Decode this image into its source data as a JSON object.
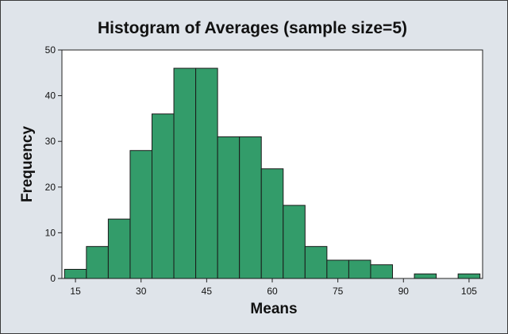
{
  "chart_data": {
    "type": "bar",
    "title": "Histogram of Averages (sample size=5)",
    "xlabel": "Means",
    "ylabel": "Frequency",
    "bin_width": 5,
    "bins": [
      {
        "center": 15,
        "count": 2
      },
      {
        "center": 20,
        "count": 7
      },
      {
        "center": 25,
        "count": 13
      },
      {
        "center": 30,
        "count": 28
      },
      {
        "center": 35,
        "count": 36
      },
      {
        "center": 40,
        "count": 46
      },
      {
        "center": 45,
        "count": 46
      },
      {
        "center": 50,
        "count": 31
      },
      {
        "center": 55,
        "count": 31
      },
      {
        "center": 60,
        "count": 24
      },
      {
        "center": 65,
        "count": 16
      },
      {
        "center": 70,
        "count": 7
      },
      {
        "center": 75,
        "count": 4
      },
      {
        "center": 80,
        "count": 4
      },
      {
        "center": 85,
        "count": 3
      },
      {
        "center": 90,
        "count": 0
      },
      {
        "center": 95,
        "count": 1
      },
      {
        "center": 100,
        "count": 0
      },
      {
        "center": 105,
        "count": 1
      }
    ],
    "xticks": [
      "15",
      "30",
      "45",
      "60",
      "75",
      "90",
      "105"
    ],
    "yticks": [
      "0",
      "10",
      "20",
      "30",
      "40",
      "50"
    ],
    "xlim": [
      11.9,
      108.1
    ],
    "ylim": [
      0,
      50
    ],
    "grid": false,
    "colors": {
      "bar_fill": "#339c6a",
      "bar_edge": "#1a1a1a",
      "plot_background": "#ffffff",
      "chart_background": "#dfe4ea"
    }
  }
}
